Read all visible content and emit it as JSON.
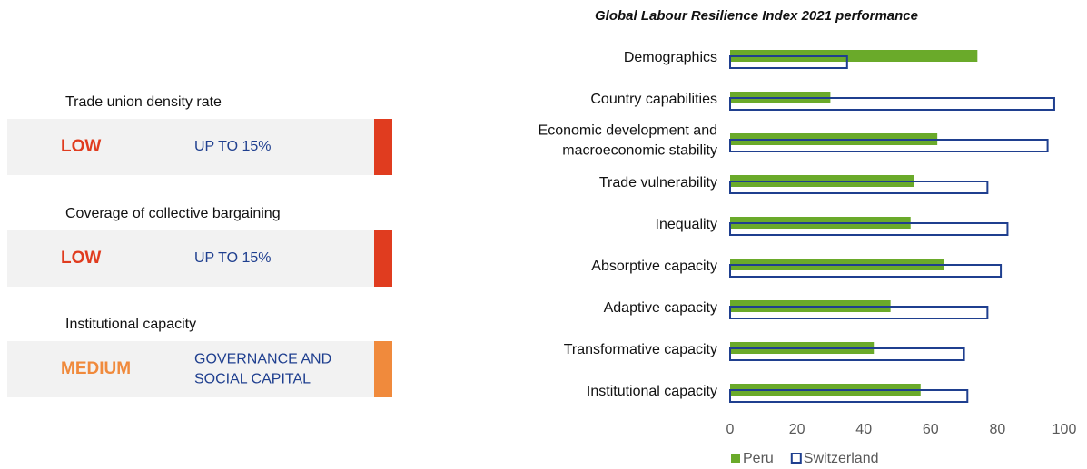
{
  "indicators": [
    {
      "title": "Trade union density rate",
      "level": "LOW",
      "value": "UP TO 15%",
      "color": "#e03c1f"
    },
    {
      "title": "Coverage of collective bargaining",
      "level": "LOW",
      "value": "UP TO 15%",
      "color": "#e03c1f"
    },
    {
      "title": "Institutional capacity",
      "level": "MEDIUM",
      "value": "GOVERNANCE AND SOCIAL CAPITAL",
      "color": "#f08a3c"
    }
  ],
  "chart_data": {
    "type": "bar",
    "orientation": "horizontal",
    "title": "Global Labour Resilience Index 2021 performance",
    "categories": [
      "Demographics",
      "Country capabilities",
      "Economic development and macroeconomic stability",
      "Trade vulnerability",
      "Inequality",
      "Absorptive capacity",
      "Adaptive capacity",
      "Transformative capacity",
      "Institutional capacity"
    ],
    "series": [
      {
        "name": "Peru",
        "color": "#6aaa2a",
        "values": [
          74,
          30,
          62,
          55,
          54,
          64,
          48,
          43,
          57
        ]
      },
      {
        "name": "Switzerland",
        "color": "#1f3f8f",
        "values": [
          35,
          97,
          95,
          77,
          83,
          81,
          77,
          70,
          71
        ]
      }
    ],
    "xlim": [
      0,
      100
    ],
    "xticks": [
      0,
      20,
      40,
      60,
      80,
      100
    ],
    "legend": "bottom"
  }
}
